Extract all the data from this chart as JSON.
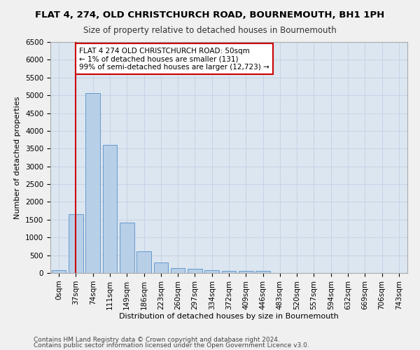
{
  "title": "FLAT 4, 274, OLD CHRISTCHURCH ROAD, BOURNEMOUTH, BH1 1PH",
  "subtitle": "Size of property relative to detached houses in Bournemouth",
  "xlabel": "Distribution of detached houses by size in Bournemouth",
  "ylabel": "Number of detached properties",
  "footer1": "Contains HM Land Registry data © Crown copyright and database right 2024.",
  "footer2": "Contains public sector information licensed under the Open Government Licence v3.0.",
  "categories": [
    "0sqm",
    "37sqm",
    "74sqm",
    "111sqm",
    "149sqm",
    "186sqm",
    "223sqm",
    "260sqm",
    "297sqm",
    "334sqm",
    "372sqm",
    "409sqm",
    "446sqm",
    "483sqm",
    "520sqm",
    "557sqm",
    "594sqm",
    "632sqm",
    "669sqm",
    "706sqm",
    "743sqm"
  ],
  "bar_values": [
    75,
    1650,
    5060,
    3600,
    1410,
    620,
    290,
    145,
    110,
    80,
    65,
    55,
    50,
    0,
    0,
    0,
    0,
    0,
    0,
    0,
    0
  ],
  "bar_color": "#b8cfe8",
  "bar_edge_color": "#6699cc",
  "property_line_x": 1,
  "property_line_color": "#cc0000",
  "annotation_text": "FLAT 4 274 OLD CHRISTCHURCH ROAD: 50sqm\n← 1% of detached houses are smaller (131)\n99% of semi-detached houses are larger (12,723) →",
  "annotation_box_color": "#ffffff",
  "annotation_border_color": "#cc0000",
  "ylim": [
    0,
    6500
  ],
  "yticks": [
    0,
    500,
    1000,
    1500,
    2000,
    2500,
    3000,
    3500,
    4000,
    4500,
    5000,
    5500,
    6000,
    6500
  ],
  "grid_color": "#c8d4e8",
  "plot_bg_color": "#dce6f0",
  "fig_bg_color": "#f0f0f0",
  "title_fontsize": 9.5,
  "subtitle_fontsize": 8.5,
  "axis_label_fontsize": 8,
  "tick_fontsize": 7.5,
  "annotation_fontsize": 7.5,
  "footer_fontsize": 6.5
}
